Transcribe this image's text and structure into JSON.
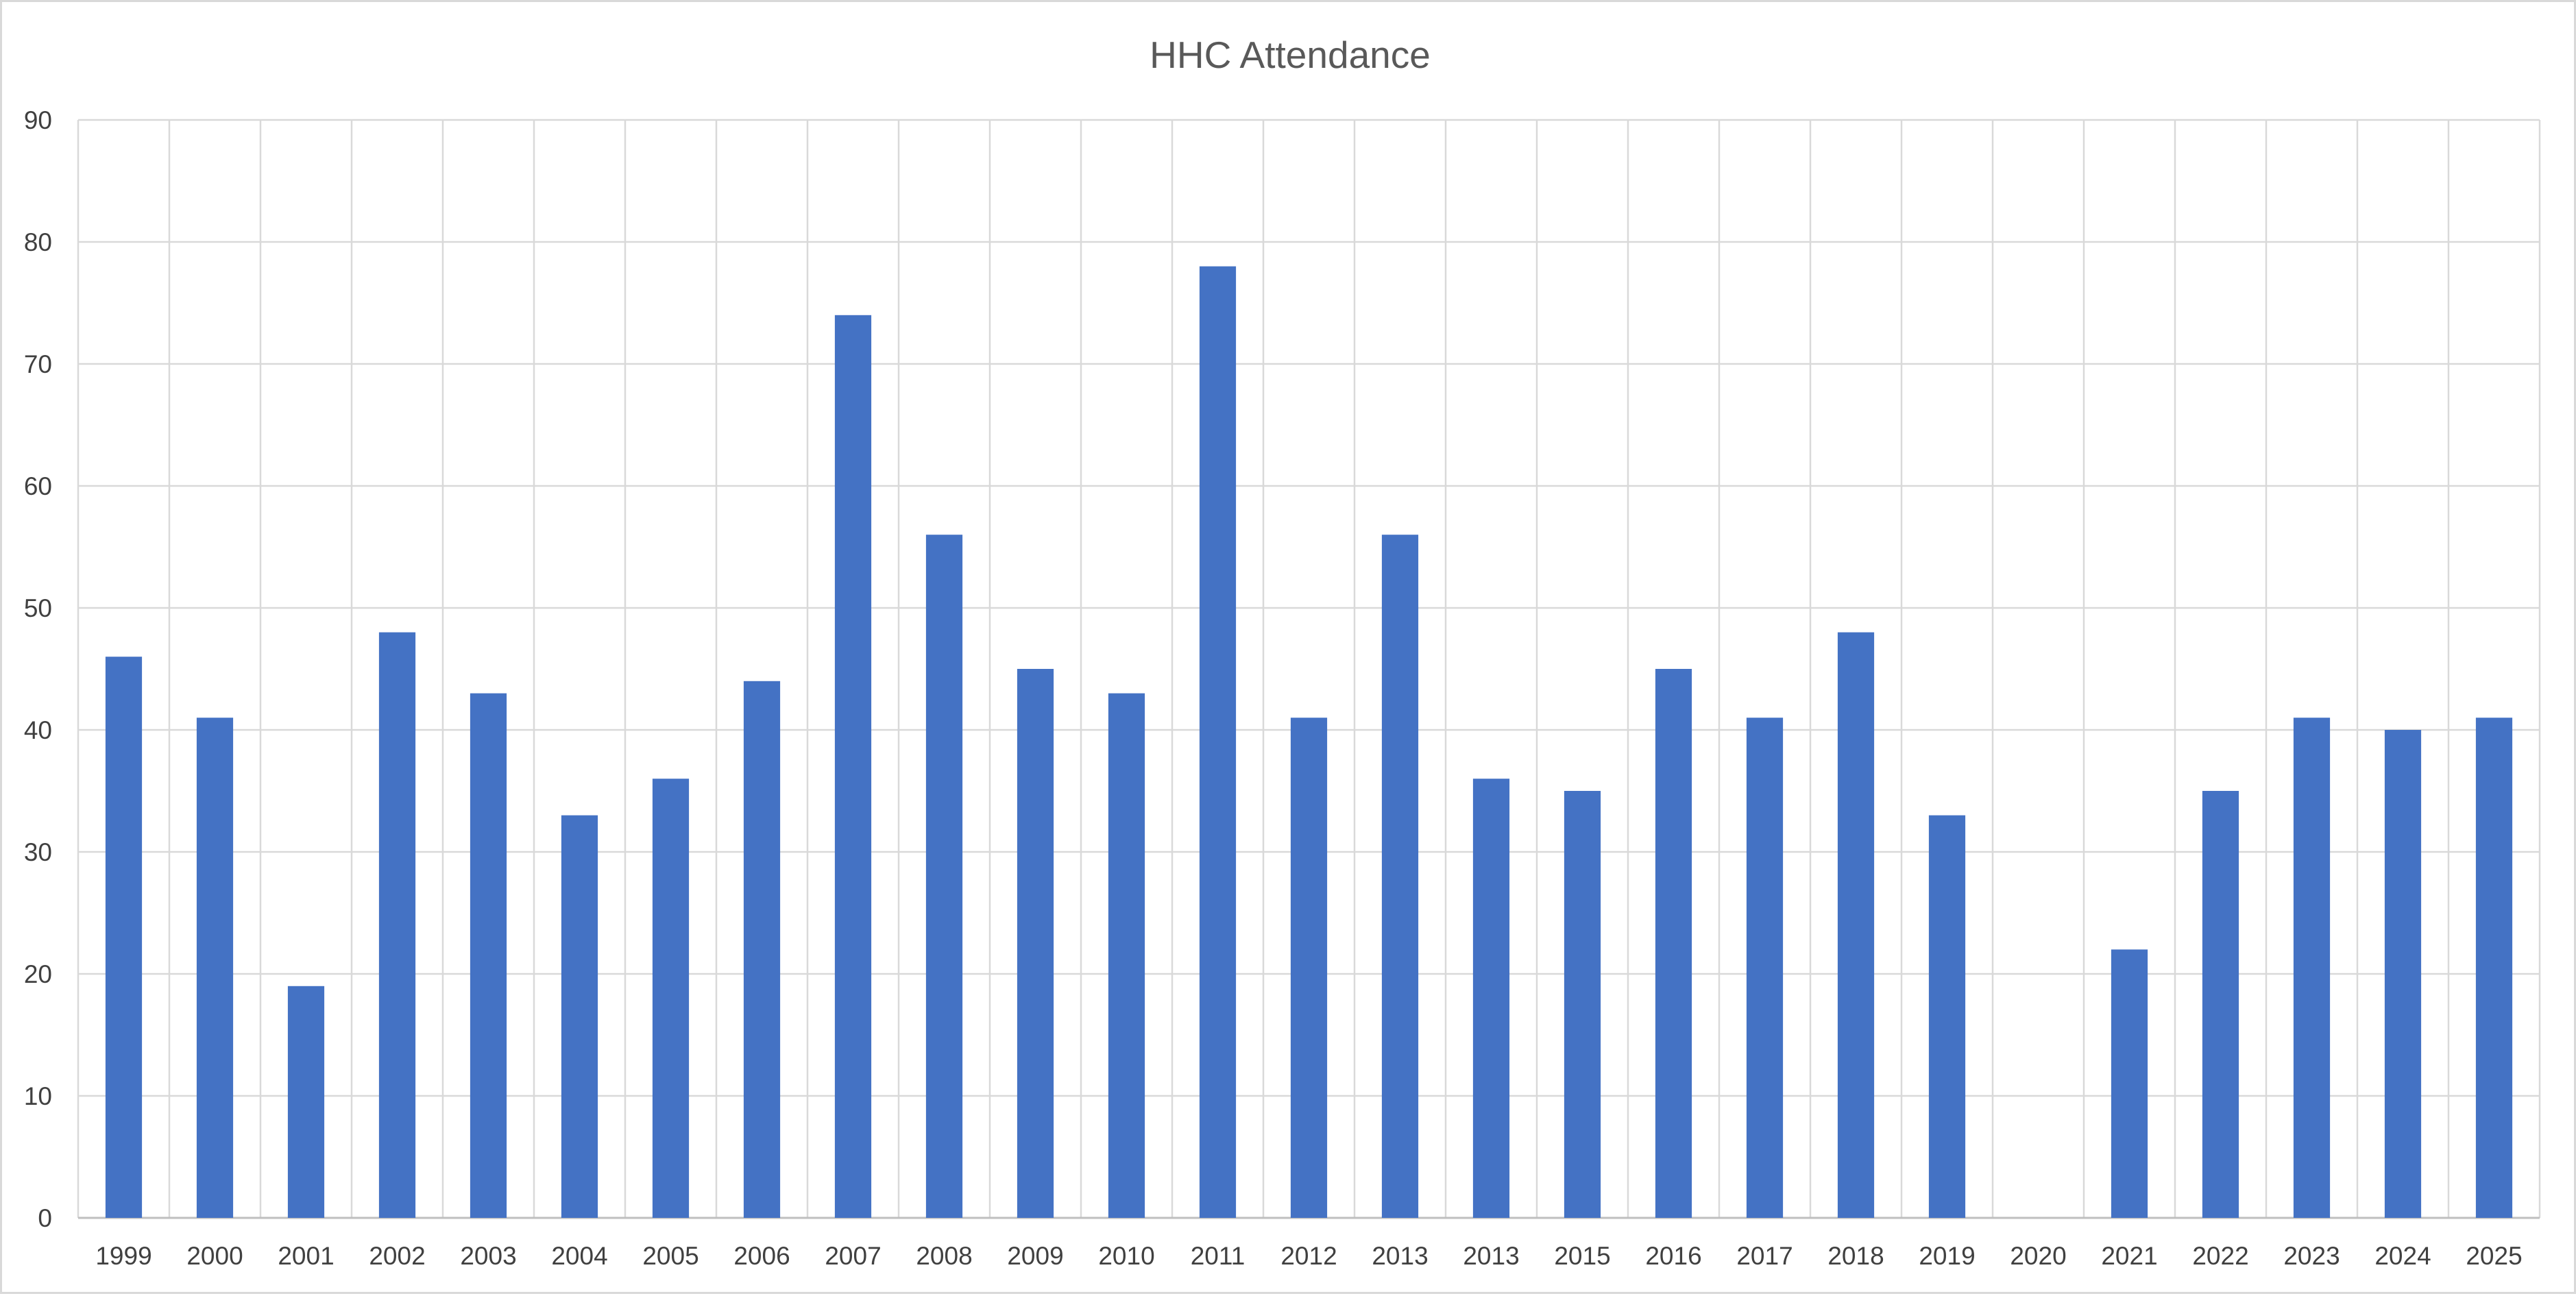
{
  "chart_data": {
    "type": "bar",
    "title": "HHC Attendance",
    "xlabel": "",
    "ylabel": "",
    "categories": [
      "1999",
      "2000",
      "2001",
      "2002",
      "2003",
      "2004",
      "2005",
      "2006",
      "2007",
      "2008",
      "2009",
      "2010",
      "2011",
      "2012",
      "2013",
      "2013",
      "2015",
      "2016",
      "2017",
      "2018",
      "2019",
      "2020",
      "2021",
      "2022",
      "2023",
      "2024",
      "2025"
    ],
    "values": [
      46,
      41,
      19,
      48,
      43,
      33,
      36,
      44,
      74,
      56,
      45,
      43,
      78,
      41,
      56,
      36,
      35,
      45,
      41,
      48,
      33,
      0,
      22,
      35,
      41,
      40,
      41
    ],
    "ylim": [
      0,
      90
    ],
    "yticks": [
      0,
      10,
      20,
      30,
      40,
      50,
      60,
      70,
      80,
      90
    ],
    "grid": true,
    "vertical_grid": true,
    "legend": "none",
    "bar_color": "#4472c4"
  }
}
